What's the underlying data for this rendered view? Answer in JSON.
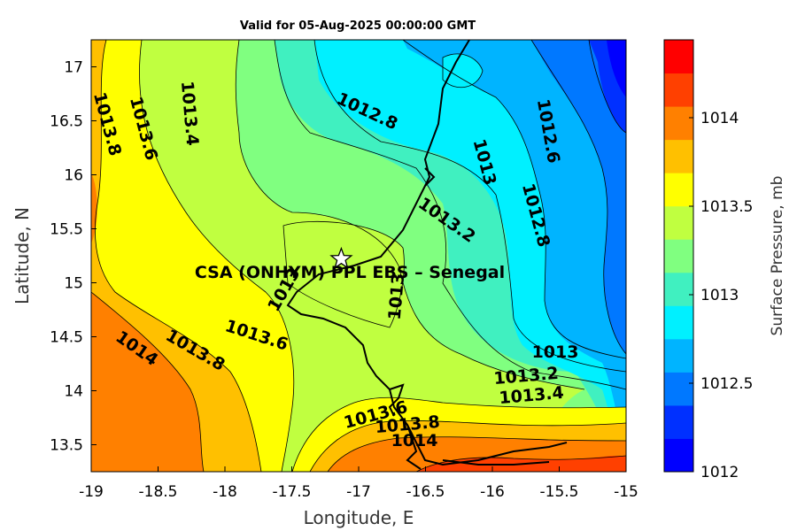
{
  "title": "Valid for 05-Aug-2025 00:00:00 GMT",
  "map": {
    "xlabel": "Longitude, E",
    "ylabel": "Latitude, N",
    "xlim": [
      -19,
      -15
    ],
    "ylim": [
      13.25,
      17.25
    ],
    "xticks": [
      "-19",
      "-18.5",
      "-18",
      "-17.5",
      "-17",
      "-16.5",
      "-16",
      "-15.5",
      "-15"
    ],
    "yticks": [
      "13.5",
      "14",
      "14.5",
      "15",
      "15.5",
      "16",
      "16.5",
      "17"
    ],
    "station_label": "CSA (ONHYM) PPL EBS  – Senegal",
    "station_marker": "star",
    "station_lon": -17.13,
    "station_lat": 15.22
  },
  "contour_labels": [
    "1013.8",
    "1013.6",
    "1013.4",
    "1012.8",
    "1012.6",
    "1013",
    "1013.2",
    "1012.8",
    "1013",
    "1013",
    "1014",
    "1013.8",
    "1013.6",
    "1013",
    "1013.2",
    "1013.4",
    "1013.6",
    "1013.8",
    "1014"
  ],
  "colorbar": {
    "label": "Surface Pressure, mb",
    "ticks": [
      "1012",
      "1012.5",
      "1013",
      "1013.5",
      "1014"
    ],
    "colors": [
      "#0000ff",
      "#0030ff",
      "#0078ff",
      "#00b4ff",
      "#00f0ff",
      "#40f0c0",
      "#80ff80",
      "#c0ff40",
      "#ffff00",
      "#ffc000",
      "#ff8000",
      "#ff4000",
      "#ff0000"
    ]
  }
}
